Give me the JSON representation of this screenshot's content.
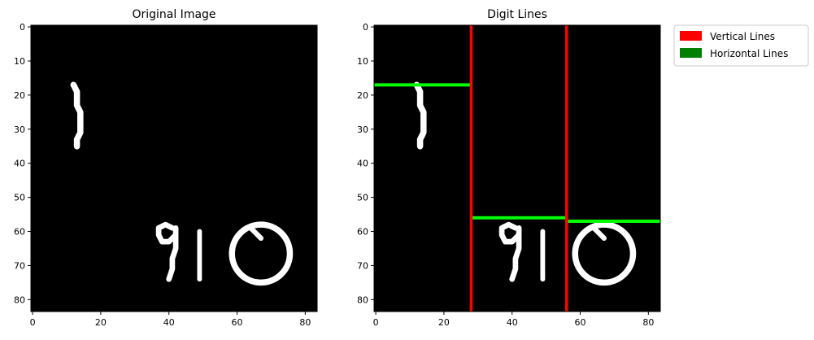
{
  "chart_data": [
    {
      "type": "image",
      "title": "Original Image",
      "xlim": [
        -0.5,
        83.5
      ],
      "ylim": [
        83.5,
        -0.5
      ],
      "x_ticks": [
        0,
        20,
        40,
        60,
        80
      ],
      "y_ticks": [
        0,
        10,
        20,
        30,
        40,
        50,
        60,
        70,
        80
      ],
      "digit_strokes": [
        {
          "name": "digit-1",
          "points": [
            [
              12,
              17
            ],
            [
              13,
              19
            ],
            [
              13,
              21
            ],
            [
              13,
              23
            ],
            [
              14,
              25
            ],
            [
              14,
              27
            ],
            [
              14,
              29
            ],
            [
              14,
              31
            ],
            [
              13,
              33
            ],
            [
              13,
              35
            ]
          ],
          "width": 1.8
        },
        {
          "name": "digit-9",
          "points": [
            [
              41,
              59
            ],
            [
              39,
              58
            ],
            [
              37,
              59
            ],
            [
              37,
              61
            ],
            [
              38,
              63
            ],
            [
              40,
              63
            ],
            [
              42,
              61
            ],
            [
              42,
              59
            ],
            [
              42,
              62
            ],
            [
              42,
              65
            ],
            [
              41,
              68
            ],
            [
              41,
              71
            ],
            [
              40,
              74
            ]
          ],
          "width": 1.6
        },
        {
          "name": "digit-1-second",
          "points": [
            [
              49,
              60
            ],
            [
              49,
              64
            ],
            [
              49,
              68
            ],
            [
              49,
              72
            ],
            [
              49,
              74
            ]
          ],
          "width": 1.4
        },
        {
          "name": "digit-0-ellipse",
          "ellipse": {
            "cx": 67,
            "cy": 66.5,
            "rx": 8.5,
            "ry": 8.5
          },
          "width": 1.8
        },
        {
          "name": "digit-0-tail",
          "points": [
            [
              64,
              59
            ],
            [
              66,
              61
            ],
            [
              67,
              62
            ]
          ],
          "width": 1.5
        }
      ]
    },
    {
      "type": "image",
      "title": "Digit Lines",
      "xlim": [
        -0.5,
        83.5
      ],
      "ylim": [
        83.5,
        -0.5
      ],
      "x_ticks": [
        0,
        20,
        40,
        60,
        80
      ],
      "y_ticks": [
        0,
        10,
        20,
        30,
        40,
        50,
        60,
        70,
        80
      ],
      "vertical_lines": [
        28,
        56
      ],
      "horizontal_lines": [
        {
          "y": 17,
          "x_start": -0.5,
          "x_end": 28
        },
        {
          "y": 56,
          "x_start": 28,
          "x_end": 56
        },
        {
          "y": 57,
          "x_start": 56,
          "x_end": 83.5
        }
      ],
      "colors": {
        "vertical": "#ff0000",
        "horizontal": "#00ff00"
      }
    }
  ],
  "legend": {
    "items": [
      {
        "label": "Vertical Lines",
        "color": "#ff0000"
      },
      {
        "label": "Horizontal Lines",
        "color": "#008000"
      }
    ]
  }
}
